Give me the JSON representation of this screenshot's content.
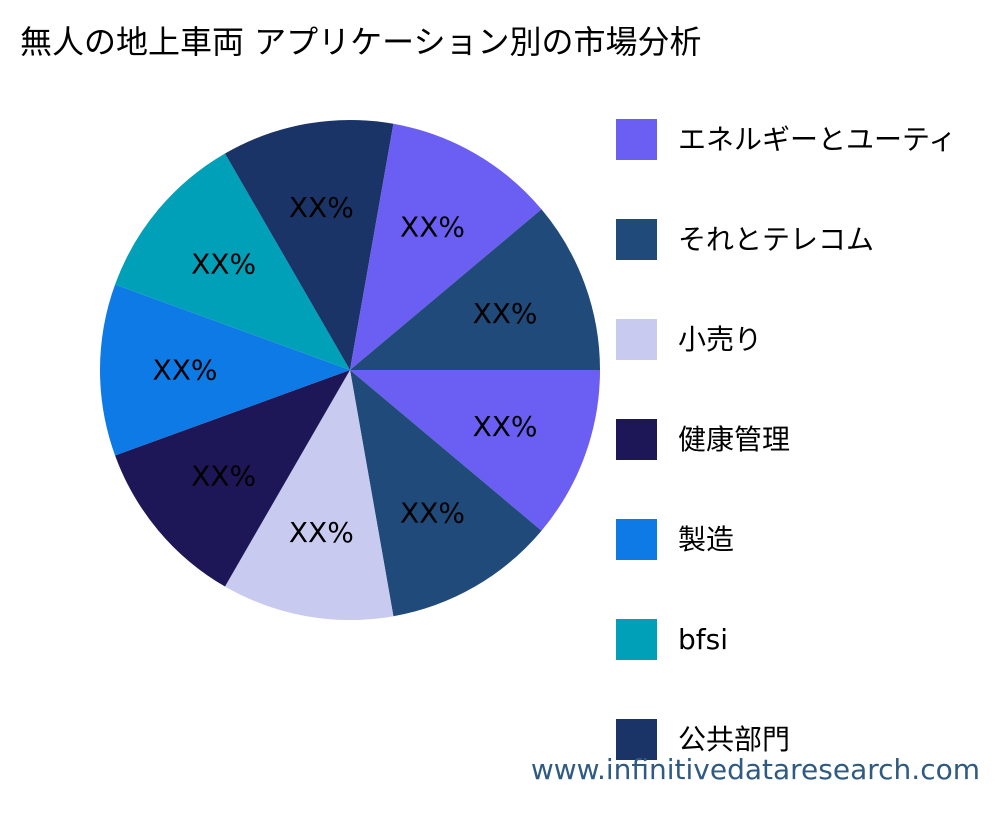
{
  "chart_data": {
    "type": "pie",
    "title": "無人の地上車両 アプリケーション別の市場分析",
    "categories": [
      "エネルギーとユーティ",
      "それとテレコム",
      "小売り",
      "健康管理",
      "製造",
      "bfsi",
      "公共部門"
    ],
    "slices": [
      {
        "category": "エネルギーとユーティ",
        "label": "XX%",
        "value": 1,
        "color": "#6b5ef2"
      },
      {
        "category": "それとテレコム",
        "label": "XX%",
        "value": 1,
        "color": "#1f4a7a"
      },
      {
        "category": "小売り",
        "label": "XX%",
        "value": 1,
        "color": "#c9caf0"
      },
      {
        "category": "健康管理",
        "label": "XX%",
        "value": 1,
        "color": "#1d1757"
      },
      {
        "category": "製造",
        "label": "XX%",
        "value": 1,
        "color": "#0e7ae6"
      },
      {
        "category": "bfsi",
        "label": "XX%",
        "value": 1,
        "color": "#00a0b8"
      },
      {
        "category": "公共部門",
        "label": "XX%",
        "value": 1,
        "color": "#1b3468"
      },
      {
        "category": "エネルギーとユーティ",
        "label": "XX%",
        "value": 1,
        "color": "#6b5ef2"
      },
      {
        "category": "それとテレコム",
        "label": "XX%",
        "value": 1,
        "color": "#1f4a7a"
      }
    ],
    "legend": {
      "position": "right",
      "items": [
        {
          "label": "エネルギーとユーティ",
          "color": "#6b5ef2"
        },
        {
          "label": "それとテレコム",
          "color": "#1f4a7a"
        },
        {
          "label": "小売り",
          "color": "#c9caf0"
        },
        {
          "label": "健康管理",
          "color": "#1d1757"
        },
        {
          "label": "製造",
          "color": "#0e7ae6"
        },
        {
          "label": "bfsi",
          "color": "#00a0b8"
        },
        {
          "label": "公共部門",
          "color": "#1b3468"
        }
      ]
    }
  },
  "watermark": "www.infinitivedataresearch.com"
}
